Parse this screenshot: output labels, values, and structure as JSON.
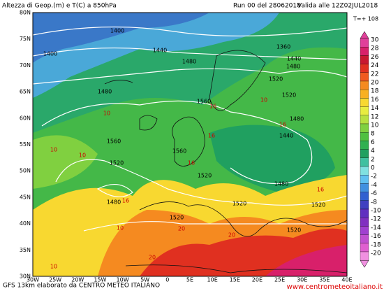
{
  "header": {
    "title": "Altezza di Geop.(m) e T(C) a 850hPa",
    "run": "Run 00 del 28062018",
    "valid": "Valida alle 12Z02JUL2018",
    "step": "T=+ 108"
  },
  "map": {
    "lat_labels": [
      "80N",
      "75N",
      "70N",
      "65N",
      "60N",
      "55N",
      "50N",
      "45N",
      "40N",
      "35N",
      "30N"
    ],
    "lon_labels": [
      "30W",
      "25W",
      "20W",
      "15W",
      "10W",
      "5W",
      "0",
      "5E",
      "10E",
      "15E",
      "20E",
      "25E",
      "30E",
      "35E",
      "40E"
    ],
    "height_labels": [
      1400,
      1440,
      1360,
      1400,
      1480,
      1440,
      1480,
      1520,
      1480,
      1520,
      1560,
      1480,
      1560,
      1440,
      1560,
      1520,
      1520,
      1480,
      1480,
      1520,
      1520,
      1520,
      1520
    ],
    "temp_labels": [
      10,
      10,
      10,
      16,
      16,
      16,
      10,
      16,
      16,
      16,
      10,
      20,
      20,
      20,
      10
    ]
  },
  "colorbar": {
    "ticks": [
      30,
      28,
      26,
      24,
      22,
      20,
      18,
      16,
      14,
      12,
      10,
      8,
      6,
      4,
      2,
      0,
      -2,
      -4,
      -6,
      -8,
      -10,
      -12,
      -14,
      -16,
      -18,
      -20
    ],
    "colors": [
      "#e0409a",
      "#d8206a",
      "#c81830",
      "#e03020",
      "#f05a20",
      "#f58a20",
      "#f8b020",
      "#f8d830",
      "#e8ec40",
      "#b8e040",
      "#80d040",
      "#50c040",
      "#30b050",
      "#20a060",
      "#40c0a0",
      "#80e0e0",
      "#60c0f0",
      "#4090e0",
      "#3060d0",
      "#4040c0",
      "#6030c0",
      "#8030c0",
      "#a040d0",
      "#c050d0",
      "#e060d0",
      "#f090e0"
    ]
  },
  "footer": {
    "credit": "GFS 13km elaborato da CENTRO METEO ITALIANO",
    "url": "www.centrometeoitaliano.it"
  }
}
